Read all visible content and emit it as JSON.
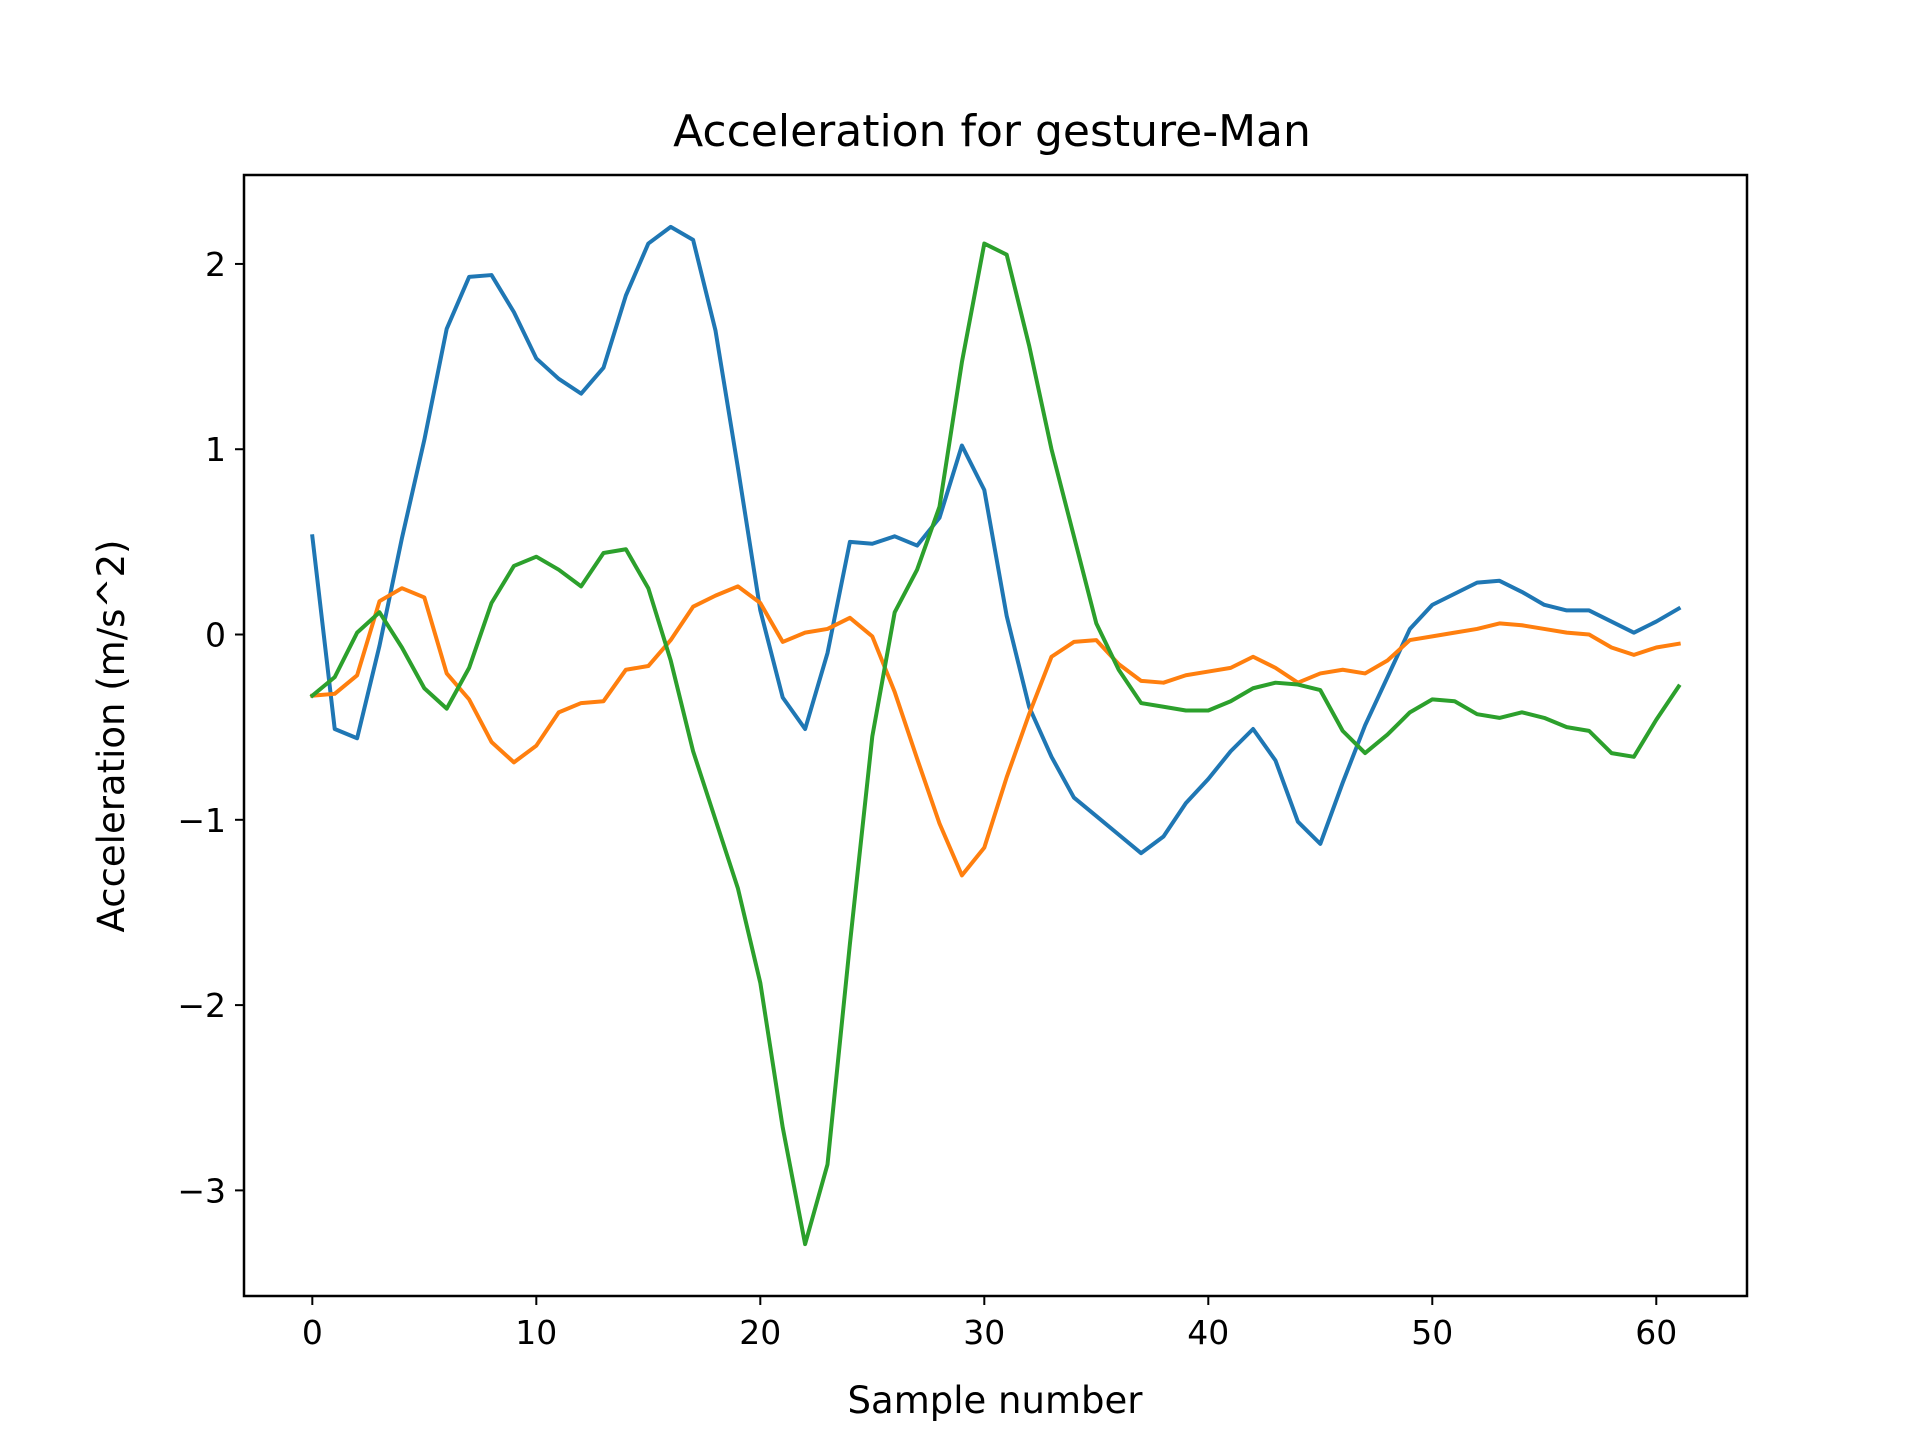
{
  "chart_data": {
    "type": "line",
    "title": "Acceleration for gesture-Man",
    "xlabel": "Sample number",
    "ylabel": "Acceleration (m/s^2)",
    "xlim": [
      -3.05,
      64.05
    ],
    "ylim": [
      -3.57,
      2.48
    ],
    "xticks": [
      0,
      10,
      20,
      30,
      40,
      50,
      60
    ],
    "xtick_labels": [
      "0",
      "10",
      "20",
      "30",
      "40",
      "50",
      "60"
    ],
    "yticks": [
      2,
      1,
      0,
      -1,
      -2,
      -3
    ],
    "ytick_labels": [
      "2",
      "1",
      "0",
      "−1",
      "−2",
      "−3"
    ],
    "grid": false,
    "legend": "none",
    "x": [
      0,
      1,
      2,
      3,
      4,
      5,
      6,
      7,
      8,
      9,
      10,
      11,
      12,
      13,
      14,
      15,
      16,
      17,
      18,
      19,
      20,
      21,
      22,
      23,
      24,
      25,
      26,
      27,
      28,
      29,
      30,
      31,
      32,
      33,
      34,
      35,
      36,
      37,
      38,
      39,
      40,
      41,
      42,
      43,
      44,
      45,
      46,
      47,
      48,
      49,
      50,
      51,
      52,
      53,
      54,
      55,
      56,
      57,
      58,
      59,
      60,
      61
    ],
    "series": [
      {
        "color": "#1f77b4",
        "values": [
          0.53,
          -0.51,
          -0.56,
          -0.06,
          0.52,
          1.05,
          1.65,
          1.93,
          1.94,
          1.74,
          1.49,
          1.38,
          1.3,
          1.44,
          1.83,
          2.11,
          2.2,
          2.13,
          1.64,
          0.9,
          0.13,
          -0.34,
          -0.51,
          -0.1,
          0.5,
          0.49,
          0.53,
          0.48,
          0.63,
          1.02,
          0.78,
          0.1,
          -0.39,
          -0.66,
          -0.88,
          -0.98,
          -1.08,
          -1.18,
          -1.09,
          -0.91,
          -0.78,
          -0.63,
          -0.51,
          -0.68,
          -1.01,
          -1.13,
          -0.8,
          -0.49,
          -0.23,
          0.03,
          0.16,
          0.22,
          0.28,
          0.29,
          0.23,
          0.16,
          0.13,
          0.13,
          0.07,
          0.01,
          0.07,
          0.14
        ]
      },
      {
        "color": "#ff7f0e",
        "values": [
          -0.33,
          -0.32,
          -0.22,
          0.18,
          0.25,
          0.2,
          -0.21,
          -0.35,
          -0.58,
          -0.69,
          -0.6,
          -0.42,
          -0.37,
          -0.36,
          -0.19,
          -0.17,
          -0.03,
          0.15,
          0.21,
          0.26,
          0.17,
          -0.04,
          0.01,
          0.03,
          0.09,
          -0.01,
          -0.31,
          -0.67,
          -1.02,
          -1.3,
          -1.15,
          -0.77,
          -0.43,
          -0.12,
          -0.04,
          -0.03,
          -0.16,
          -0.25,
          -0.26,
          -0.22,
          -0.2,
          -0.18,
          -0.12,
          -0.18,
          -0.26,
          -0.21,
          -0.19,
          -0.21,
          -0.14,
          -0.03,
          -0.01,
          0.01,
          0.03,
          0.06,
          0.05,
          0.03,
          0.01,
          0.0,
          -0.07,
          -0.11,
          -0.07,
          -0.05
        ]
      },
      {
        "color": "#2ca02c",
        "values": [
          -0.33,
          -0.23,
          0.01,
          0.12,
          -0.07,
          -0.29,
          -0.4,
          -0.18,
          0.17,
          0.37,
          0.42,
          0.35,
          0.26,
          0.44,
          0.46,
          0.25,
          -0.14,
          -0.63,
          -1.0,
          -1.37,
          -1.88,
          -2.66,
          -3.29,
          -2.86,
          -1.67,
          -0.55,
          0.12,
          0.35,
          0.69,
          1.47,
          2.11,
          2.05,
          1.56,
          1.0,
          0.53,
          0.06,
          -0.19,
          -0.37,
          -0.39,
          -0.41,
          -0.41,
          -0.36,
          -0.29,
          -0.26,
          -0.27,
          -0.3,
          -0.52,
          -0.64,
          -0.54,
          -0.42,
          -0.35,
          -0.36,
          -0.43,
          -0.45,
          -0.42,
          -0.45,
          -0.5,
          -0.52,
          -0.64,
          -0.66,
          -0.46,
          -0.28
        ]
      }
    ]
  }
}
